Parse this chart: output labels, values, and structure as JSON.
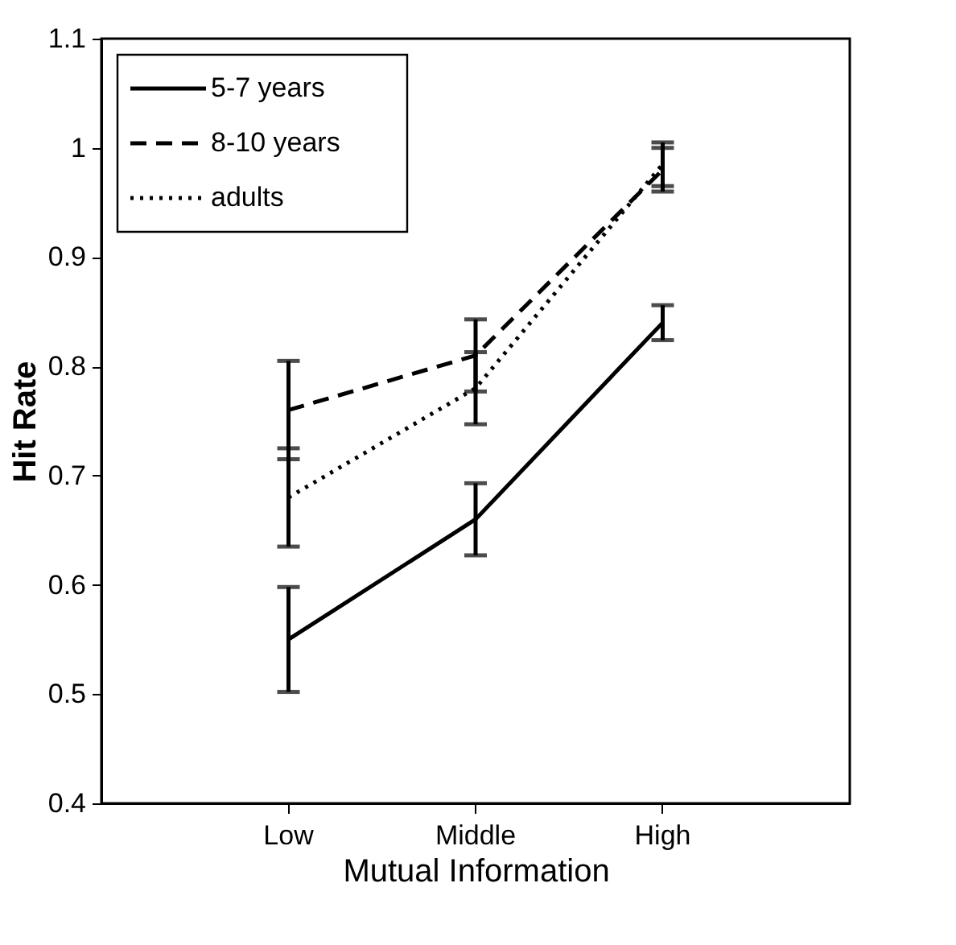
{
  "chart_data": {
    "type": "line",
    "xlabel": "Mutual Information",
    "ylabel": "Hit Rate",
    "categories": [
      "Low",
      "Middle",
      "High"
    ],
    "series": [
      {
        "name": "5-7 years",
        "color": "#000000",
        "line_style": "solid",
        "values": [
          0.55,
          0.66,
          0.84
        ],
        "errors": [
          0.048,
          0.033,
          0.016
        ]
      },
      {
        "name": "8-10 years",
        "color": "#000000",
        "line_style": "dashed",
        "values": [
          0.76,
          0.81,
          0.98
        ],
        "errors": [
          0.045,
          0.033,
          0.02
        ]
      },
      {
        "name": "adults",
        "color": "#000000",
        "line_style": "dotted",
        "values": [
          0.68,
          0.78,
          0.985
        ],
        "errors": [
          0.045,
          0.033,
          0.02
        ]
      }
    ],
    "ylim": [
      0.4,
      1.1
    ],
    "yticks": [
      0.4,
      0.5,
      0.6,
      0.7,
      0.8,
      0.9,
      1,
      1.1
    ],
    "grid": false,
    "legend": "top left",
    "marker": "none"
  }
}
